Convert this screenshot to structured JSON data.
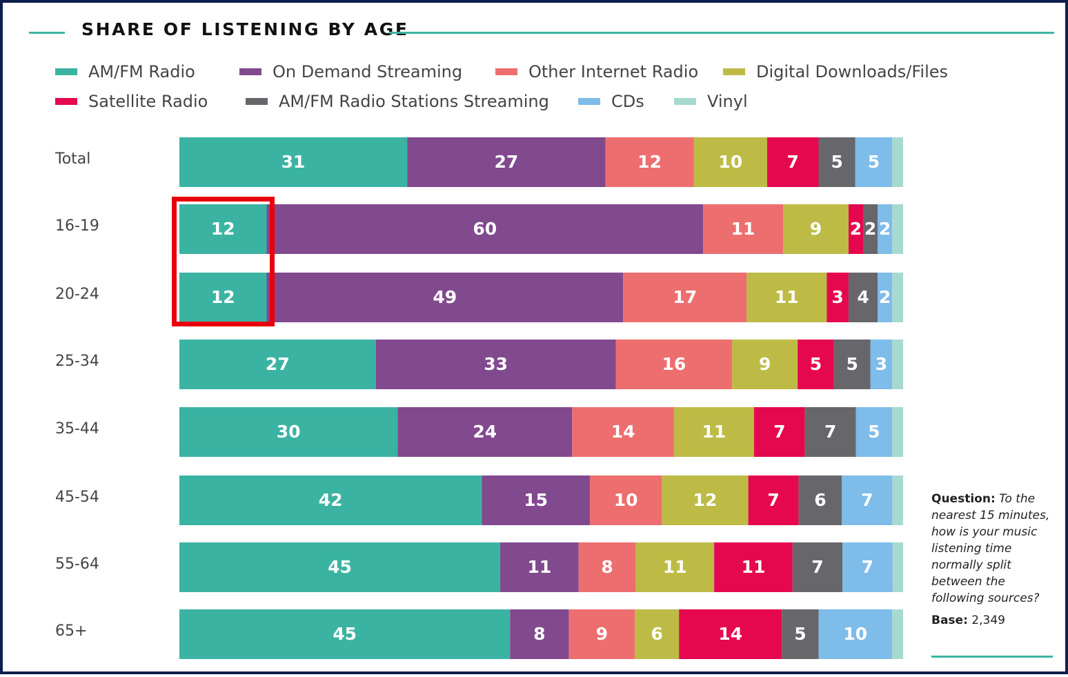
{
  "title": "SHARE OF LISTENING BY AGE",
  "colors": {
    "accent_line": "#3cb5a5",
    "frame_border": "#0d1f4a",
    "highlight": "#e8000d"
  },
  "note": {
    "question_label": "Question:",
    "question_text": "To the nearest 15 minutes, how is your music listening time normally split between the following sources?",
    "base_label": "Base:",
    "base_value": "2,349"
  },
  "chart_data": {
    "type": "bar",
    "orientation": "horizontal",
    "stacked": true,
    "title": "SHARE OF LISTENING BY AGE",
    "xlabel": "",
    "ylabel": "",
    "xlim": [
      0,
      100
    ],
    "legend_position": "top",
    "categories": [
      "Total",
      "16-19",
      "20-24",
      "25-34",
      "35-44",
      "45-54",
      "55-64",
      "65+"
    ],
    "series": [
      {
        "name": "AM/FM Radio",
        "color": "#3bb3a3",
        "values": [
          31,
          12,
          12,
          27,
          30,
          42,
          45,
          45
        ]
      },
      {
        "name": "On Demand Streaming",
        "color": "#81498e",
        "values": [
          27,
          60,
          49,
          33,
          24,
          15,
          11,
          8
        ]
      },
      {
        "name": "Other Internet Radio",
        "color": "#ed6e6f",
        "values": [
          12,
          11,
          17,
          16,
          14,
          10,
          8,
          9
        ]
      },
      {
        "name": "Digital Downloads/Files",
        "color": "#bdbb46",
        "values": [
          10,
          9,
          11,
          9,
          11,
          12,
          11,
          6
        ]
      },
      {
        "name": "Satellite Radio",
        "color": "#e5084f",
        "values": [
          7,
          2,
          3,
          5,
          7,
          7,
          11,
          14
        ]
      },
      {
        "name": "AM/FM Radio Stations Streaming",
        "color": "#67676b",
        "values": [
          5,
          2,
          4,
          5,
          7,
          6,
          7,
          5
        ]
      },
      {
        "name": "CDs",
        "color": "#7ebce9",
        "values": [
          5,
          2,
          2,
          3,
          5,
          7,
          7,
          10
        ]
      },
      {
        "name": "Vinyl",
        "color": "#a7d9d1",
        "values": [
          1.5,
          1.5,
          1.5,
          1.5,
          1.5,
          1.5,
          1.5,
          1.5
        ]
      }
    ],
    "data_labels_hidden_for": [
      "Vinyl"
    ],
    "highlighted": {
      "series": "AM/FM Radio",
      "categories": [
        "16-19",
        "20-24"
      ]
    }
  }
}
